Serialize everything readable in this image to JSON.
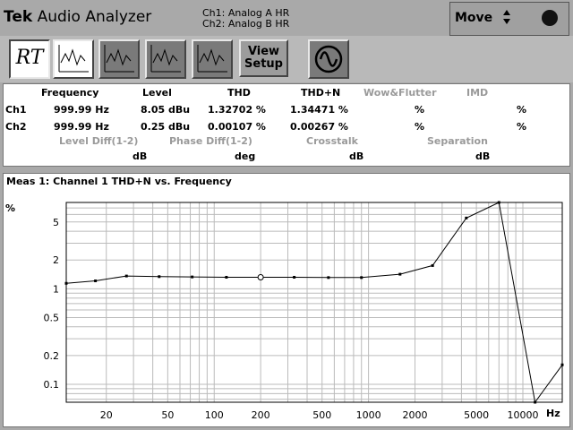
{
  "header": {
    "brand_bold": "Tek",
    "brand_rest": " Audio Analyzer",
    "ch1_source": "Ch1: Analog A HR",
    "ch2_source": "Ch2: Analog B HR",
    "move_label": "Move",
    "move_arrows": "▲▼"
  },
  "toolbar": {
    "rt_label": "RT",
    "view_setup_line1": "View",
    "view_setup_line2": "Setup"
  },
  "readings": {
    "headers": {
      "frequency": "Frequency",
      "level": "Level",
      "thd": "THD",
      "thdn": "THD+N",
      "wow": "Wow&Flutter",
      "imd": "IMD"
    },
    "ch1": {
      "label": "Ch1",
      "frequency": "999.99 Hz",
      "level": "8.05 dBu",
      "thd": "1.32702 %",
      "thdn": "1.34471 %",
      "wow": "%",
      "imd": "%"
    },
    "ch2": {
      "label": "Ch2",
      "frequency": "999.99 Hz",
      "level": "0.25 dBu",
      "thd": "0.00107 %",
      "thdn": "0.00267 %",
      "wow": "%",
      "imd": "%"
    },
    "second_headers": {
      "level_diff": "Level Diff(1-2)",
      "phase_diff": "Phase Diff(1-2)",
      "crosstalk": "Crosstalk",
      "separation": "Separation"
    },
    "second_units": {
      "level_diff": "dB",
      "phase_diff": "deg",
      "crosstalk": "dB",
      "separation": "dB"
    }
  },
  "graph": {
    "title": "Meas 1: Channel 1 THD+N vs. Frequency",
    "y_unit": "%",
    "x_unit": "Hz"
  },
  "chart_data": {
    "type": "line",
    "title": "Meas 1: Channel 1 THD+N vs. Frequency",
    "ylabel": "%",
    "xlabel": "Hz",
    "x_scale": "log",
    "y_scale": "log",
    "xlim": [
      11,
      18000
    ],
    "ylim": [
      0.065,
      8
    ],
    "x_ticks": [
      "20",
      "50",
      "100",
      "200",
      "500",
      "1000",
      "2000",
      "5000",
      "10000"
    ],
    "y_ticks": [
      "5",
      "2",
      "1",
      "0.5",
      "0.2",
      "0.1"
    ],
    "grid": true,
    "series": [
      {
        "x": [
          11,
          17,
          27,
          44,
          72,
          120,
          200,
          330,
          550,
          900,
          1600,
          2600,
          4300,
          7000,
          12000,
          18000
        ],
        "y": [
          1.14,
          1.21,
          1.36,
          1.34,
          1.33,
          1.32,
          1.32,
          1.32,
          1.31,
          1.31,
          1.42,
          1.75,
          5.5,
          8.0,
          0.065,
          0.16
        ]
      }
    ]
  }
}
